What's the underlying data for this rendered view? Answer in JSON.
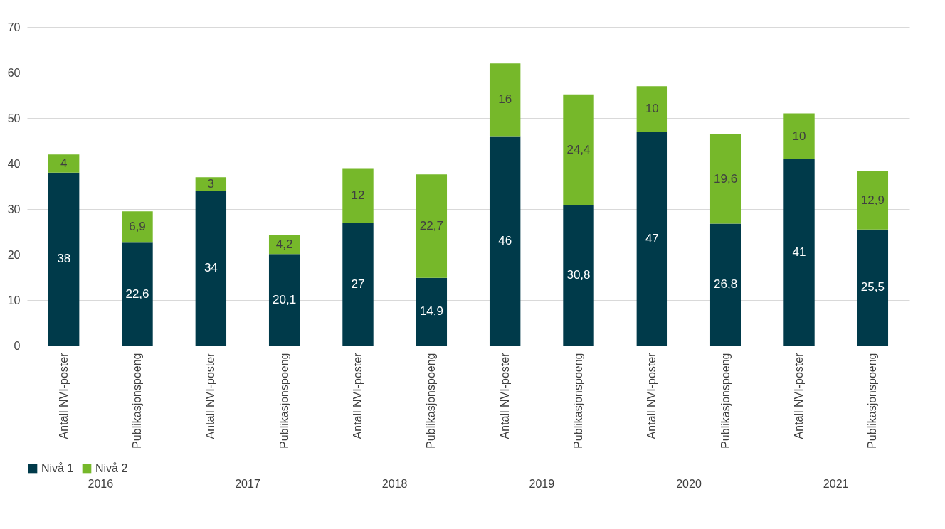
{
  "chart_data": {
    "type": "bar",
    "stacked": true,
    "categories": [
      "Antall NVI-poster",
      "Publikasjonspoeng",
      "Antall NVI-poster",
      "Publikasjonspoeng",
      "Antall NVI-poster",
      "Publikasjonspoeng",
      "Antall NVI-poster",
      "Publikasjonspoeng",
      "Antall NVI-poster",
      "Publikasjonspoeng",
      "Antall NVI-poster",
      "Publikasjonspoeng"
    ],
    "series": [
      {
        "name": "Nivå 1",
        "color": "#003a4a",
        "values": [
          38,
          22.6,
          34,
          20.1,
          27,
          14.9,
          46,
          30.8,
          47,
          26.8,
          41,
          25.5
        ],
        "value_labels": [
          "38",
          "22,6",
          "34",
          "20,1",
          "27",
          "14,9",
          "46",
          "30,8",
          "47",
          "26,8",
          "41",
          "25,5"
        ]
      },
      {
        "name": "Nivå 2",
        "color": "#76b82a",
        "values": [
          4,
          6.9,
          3,
          4.2,
          12,
          22.7,
          16,
          24.4,
          10,
          19.6,
          10,
          12.9
        ],
        "value_labels": [
          "4",
          "6,9",
          "3",
          "4,2",
          "12",
          "22,7",
          "16",
          "24,4",
          "10",
          "19,6",
          "10",
          "12,9"
        ]
      }
    ],
    "annotations": [
      "2016",
      "2017",
      "2018",
      "2019",
      "2020",
      "2021"
    ],
    "ylim": [
      0,
      70
    ],
    "yticks": [
      0,
      10,
      20,
      30,
      40,
      50,
      60,
      70
    ],
    "grid": "y",
    "legend": "bottom"
  }
}
